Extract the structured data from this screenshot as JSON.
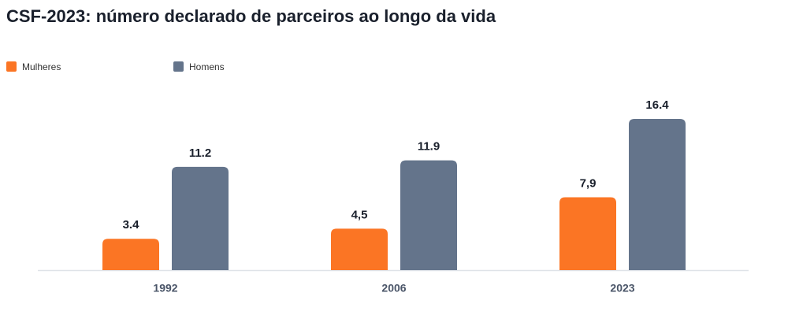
{
  "chart_data": {
    "type": "bar",
    "title": "CSF-2023: número declarado de parceiros ao longo da vida",
    "categories": [
      "1992",
      "2006",
      "2023"
    ],
    "series": [
      {
        "name": "Mulheres",
        "color": "#fb7524",
        "values": [
          3.4,
          4.5,
          7.9
        ],
        "value_labels": [
          "3.4",
          "4,5",
          "7,9"
        ]
      },
      {
        "name": "Homens",
        "color": "#64748b",
        "values": [
          11.2,
          11.9,
          16.4
        ],
        "value_labels": [
          "11.2",
          "11.9",
          "16.4"
        ]
      }
    ]
  }
}
